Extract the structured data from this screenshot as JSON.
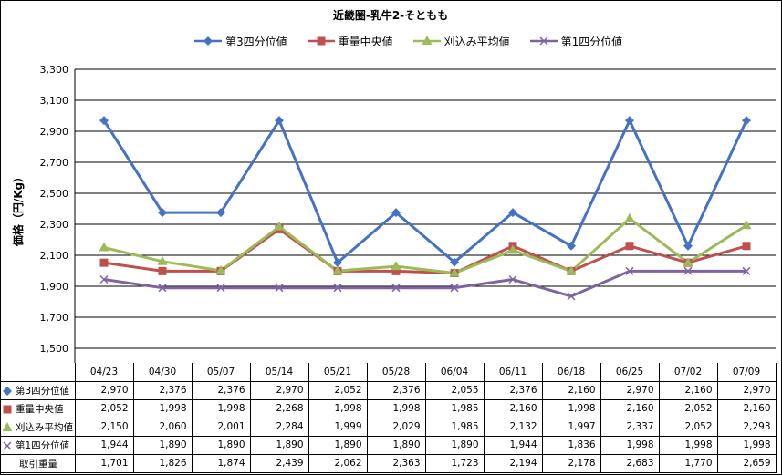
{
  "chart_data": {
    "type": "line",
    "title": "近畿圏-乳牛2-そともも",
    "ylabel": "価格（円/Kg）",
    "xlabel": "",
    "ylim": [
      1500,
      3300
    ],
    "y_ticks": [
      "1,500",
      "1,700",
      "1,900",
      "2,100",
      "2,300",
      "2,500",
      "2,700",
      "2,900",
      "3,100",
      "3,300"
    ],
    "y_tick_values": [
      1500,
      1700,
      1900,
      2100,
      2300,
      2500,
      2700,
      2900,
      3100,
      3300
    ],
    "grid": true,
    "legend_position": "top",
    "categories": [
      "04/23",
      "04/30",
      "05/07",
      "05/14",
      "05/21",
      "05/28",
      "06/04",
      "06/11",
      "06/18",
      "06/25",
      "07/02",
      "07/09"
    ],
    "series": [
      {
        "name": "第3四分位値",
        "color": "#4472C4",
        "marker": "diamond",
        "labels": [
          "2,970",
          "2,376",
          "2,376",
          "2,970",
          "2,052",
          "2,376",
          "2,055",
          "2,376",
          "2,160",
          "2,970",
          "2,160",
          "2,970"
        ],
        "values": [
          2970,
          2376,
          2376,
          2970,
          2052,
          2376,
          2055,
          2376,
          2160,
          2970,
          2160,
          2970
        ]
      },
      {
        "name": "重量中央値",
        "color": "#C0504D",
        "marker": "square",
        "labels": [
          "2,052",
          "1,998",
          "1,998",
          "2,268",
          "1,998",
          "1,998",
          "1,985",
          "2,160",
          "1,998",
          "2,160",
          "2,052",
          "2,160"
        ],
        "values": [
          2052,
          1998,
          1998,
          2268,
          1998,
          1998,
          1985,
          2160,
          1998,
          2160,
          2052,
          2160
        ]
      },
      {
        "name": "刈込み平均値",
        "color": "#9BBB59",
        "marker": "triangle",
        "labels": [
          "2,150",
          "2,060",
          "2,001",
          "2,284",
          "1,999",
          "2,029",
          "1,985",
          "2,132",
          "1,997",
          "2,337",
          "2,052",
          "2,293"
        ],
        "values": [
          2150,
          2060,
          2001,
          2284,
          1999,
          2029,
          1985,
          2132,
          1997,
          2337,
          2052,
          2293
        ]
      },
      {
        "name": "第1四分位値",
        "color": "#8064A2",
        "marker": "x",
        "labels": [
          "1,944",
          "1,890",
          "1,890",
          "1,890",
          "1,890",
          "1,890",
          "1,890",
          "1,944",
          "1,836",
          "1,998",
          "1,998",
          "1,998"
        ],
        "values": [
          1944,
          1890,
          1890,
          1890,
          1890,
          1890,
          1890,
          1944,
          1836,
          1998,
          1998,
          1998
        ]
      }
    ],
    "extra_rows": [
      {
        "name": "取引重量",
        "labels": [
          "1,701",
          "1,826",
          "1,874",
          "2,439",
          "2,062",
          "2,363",
          "1,723",
          "2,194",
          "2,178",
          "2,683",
          "1,770",
          "2,659"
        ]
      }
    ]
  }
}
